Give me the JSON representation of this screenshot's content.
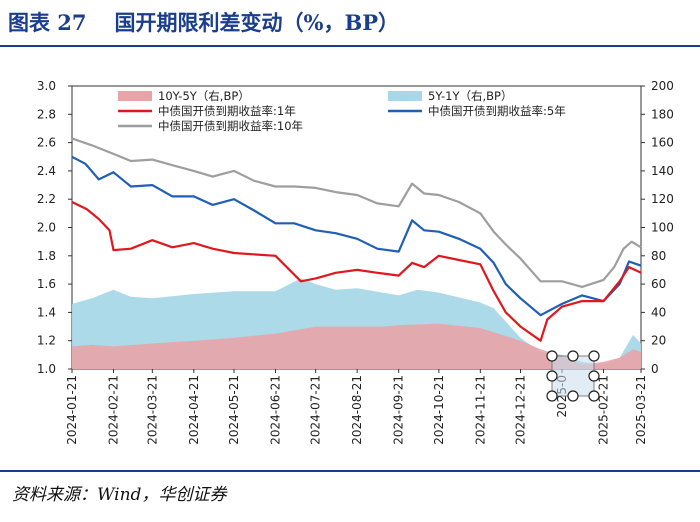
{
  "figure": {
    "number": "图表 27",
    "title": "国开期限利差变动（%，BP）",
    "source": "资料来源：Wind，华创证券"
  },
  "colors": {
    "accent": "#1a3e8c",
    "spread_10y_5y": "#e8a4a8",
    "spread_5y_1y": "#a8d8e8",
    "yield_1y": "#e0181e",
    "yield_5y": "#1f5fb5",
    "yield_10y": "#9e9e9e"
  },
  "chart_data": {
    "type": "line",
    "x_start": "2024-01-21",
    "x_end": "2025-03-21",
    "xticks": [
      "2024-01-21",
      "2024-02-21",
      "2024-03-21",
      "2024-04-21",
      "2024-05-21",
      "2024-06-21",
      "2024-07-21",
      "2024-08-21",
      "2024-09-21",
      "2024-10-21",
      "2024-11-21",
      "2024-12-21",
      "2025-01-21",
      "2025-02-21",
      "2025-03-21"
    ],
    "xtick_labels": [
      "2024-01-21",
      "2024-02-21",
      "2024-03-21",
      "2024-04-21",
      "2024-05-21",
      "2024-06-21",
      "2024-07-21",
      "2024-08-21",
      "2024-09-21",
      "2024-10-21",
      "2024-11-21",
      "2024-12-21",
      "2025-0",
      "2025-02-21",
      "2025-03-21"
    ],
    "left_axis": {
      "label": "%",
      "ylim": [
        1.0,
        3.0
      ],
      "ticks": [
        "1.0",
        "1.2",
        "1.4",
        "1.6",
        "1.8",
        "2.0",
        "2.2",
        "2.4",
        "2.6",
        "2.8",
        "3.0"
      ]
    },
    "right_axis": {
      "label": "BP",
      "ylim": [
        0,
        200
      ],
      "ticks": [
        "0",
        "20",
        "40",
        "60",
        "80",
        "100",
        "120",
        "140",
        "160",
        "180",
        "200"
      ]
    },
    "series": [
      {
        "name": "10Y-5Y（右,BP）",
        "kind": "area",
        "axis": "right",
        "points": [
          [
            "2024-01-21",
            16
          ],
          [
            "2024-02-05",
            17
          ],
          [
            "2024-02-21",
            16
          ],
          [
            "2024-03-21",
            18
          ],
          [
            "2024-04-21",
            20
          ],
          [
            "2024-05-21",
            22
          ],
          [
            "2024-06-10",
            24
          ],
          [
            "2024-06-21",
            25
          ],
          [
            "2024-07-21",
            30
          ],
          [
            "2024-08-21",
            30
          ],
          [
            "2024-09-10",
            30
          ],
          [
            "2024-09-21",
            31
          ],
          [
            "2024-10-21",
            32
          ],
          [
            "2024-11-21",
            29
          ],
          [
            "2024-12-01",
            26
          ],
          [
            "2024-12-21",
            20
          ],
          [
            "2025-01-05",
            14
          ],
          [
            "2025-01-21",
            9
          ],
          [
            "2025-02-05",
            3
          ],
          [
            "2025-02-21",
            5
          ],
          [
            "2025-03-05",
            8
          ],
          [
            "2025-03-15",
            14
          ],
          [
            "2025-03-21",
            12
          ]
        ]
      },
      {
        "name": "5Y-1Y（右,BP）",
        "kind": "area",
        "axis": "right",
        "points": [
          [
            "2024-01-21",
            46
          ],
          [
            "2024-02-05",
            50
          ],
          [
            "2024-02-21",
            56
          ],
          [
            "2024-03-05",
            51
          ],
          [
            "2024-03-21",
            50
          ],
          [
            "2024-04-21",
            53
          ],
          [
            "2024-05-21",
            55
          ],
          [
            "2024-06-21",
            55
          ],
          [
            "2024-07-10",
            64
          ],
          [
            "2024-07-21",
            60
          ],
          [
            "2024-08-05",
            56
          ],
          [
            "2024-08-21",
            57
          ],
          [
            "2024-09-21",
            52
          ],
          [
            "2024-10-05",
            56
          ],
          [
            "2024-10-21",
            54
          ],
          [
            "2024-11-21",
            47
          ],
          [
            "2024-12-01",
            43
          ],
          [
            "2024-12-21",
            22
          ],
          [
            "2025-01-05",
            12
          ],
          [
            "2025-01-21",
            10
          ],
          [
            "2025-02-05",
            5
          ],
          [
            "2025-02-21",
            3
          ],
          [
            "2025-03-05",
            8
          ],
          [
            "2025-03-15",
            24
          ],
          [
            "2025-03-21",
            18
          ]
        ]
      },
      {
        "name": "中债国开债到期收益率:1年",
        "kind": "line",
        "axis": "left",
        "points": [
          [
            "2024-01-21",
            2.18
          ],
          [
            "2024-02-01",
            2.13
          ],
          [
            "2024-02-10",
            2.06
          ],
          [
            "2024-02-18",
            1.98
          ],
          [
            "2024-02-21",
            1.84
          ],
          [
            "2024-03-05",
            1.85
          ],
          [
            "2024-03-21",
            1.91
          ],
          [
            "2024-04-05",
            1.86
          ],
          [
            "2024-04-21",
            1.89
          ],
          [
            "2024-05-05",
            1.85
          ],
          [
            "2024-05-21",
            1.82
          ],
          [
            "2024-06-21",
            1.8
          ],
          [
            "2024-07-10",
            1.62
          ],
          [
            "2024-07-21",
            1.64
          ],
          [
            "2024-08-05",
            1.68
          ],
          [
            "2024-08-21",
            1.7
          ],
          [
            "2024-09-05",
            1.68
          ],
          [
            "2024-09-21",
            1.66
          ],
          [
            "2024-10-01",
            1.75
          ],
          [
            "2024-10-10",
            1.72
          ],
          [
            "2024-10-21",
            1.8
          ],
          [
            "2024-11-05",
            1.77
          ],
          [
            "2024-11-21",
            1.74
          ],
          [
            "2024-12-01",
            1.55
          ],
          [
            "2024-12-10",
            1.4
          ],
          [
            "2024-12-21",
            1.3
          ],
          [
            "2025-01-05",
            1.2
          ],
          [
            "2025-01-10",
            1.35
          ],
          [
            "2025-01-21",
            1.44
          ],
          [
            "2025-02-05",
            1.48
          ],
          [
            "2025-02-21",
            1.48
          ],
          [
            "2025-03-05",
            1.62
          ],
          [
            "2025-03-12",
            1.72
          ],
          [
            "2025-03-21",
            1.68
          ]
        ]
      },
      {
        "name": "中债国开债到期收益率:5年",
        "kind": "line",
        "axis": "left",
        "points": [
          [
            "2024-01-21",
            2.5
          ],
          [
            "2024-01-31",
            2.45
          ],
          [
            "2024-02-10",
            2.34
          ],
          [
            "2024-02-21",
            2.39
          ],
          [
            "2024-03-05",
            2.29
          ],
          [
            "2024-03-21",
            2.3
          ],
          [
            "2024-04-05",
            2.22
          ],
          [
            "2024-04-21",
            2.22
          ],
          [
            "2024-05-05",
            2.16
          ],
          [
            "2024-05-21",
            2.2
          ],
          [
            "2024-06-05",
            2.12
          ],
          [
            "2024-06-21",
            2.03
          ],
          [
            "2024-07-05",
            2.03
          ],
          [
            "2024-07-21",
            1.98
          ],
          [
            "2024-08-05",
            1.96
          ],
          [
            "2024-08-21",
            1.92
          ],
          [
            "2024-09-05",
            1.85
          ],
          [
            "2024-09-21",
            1.83
          ],
          [
            "2024-10-01",
            2.05
          ],
          [
            "2024-10-10",
            1.98
          ],
          [
            "2024-10-21",
            1.97
          ],
          [
            "2024-11-05",
            1.92
          ],
          [
            "2024-11-21",
            1.85
          ],
          [
            "2024-12-01",
            1.75
          ],
          [
            "2024-12-10",
            1.6
          ],
          [
            "2024-12-21",
            1.5
          ],
          [
            "2025-01-05",
            1.38
          ],
          [
            "2025-01-21",
            1.46
          ],
          [
            "2025-02-05",
            1.52
          ],
          [
            "2025-02-21",
            1.48
          ],
          [
            "2025-03-05",
            1.6
          ],
          [
            "2025-03-12",
            1.76
          ],
          [
            "2025-03-21",
            1.73
          ]
        ]
      },
      {
        "name": "中债国开债到期收益率:10年",
        "kind": "line",
        "axis": "left",
        "points": [
          [
            "2024-01-21",
            2.63
          ],
          [
            "2024-02-05",
            2.58
          ],
          [
            "2024-02-21",
            2.52
          ],
          [
            "2024-03-05",
            2.47
          ],
          [
            "2024-03-21",
            2.48
          ],
          [
            "2024-04-05",
            2.44
          ],
          [
            "2024-04-21",
            2.4
          ],
          [
            "2024-05-05",
            2.36
          ],
          [
            "2024-05-21",
            2.4
          ],
          [
            "2024-06-05",
            2.33
          ],
          [
            "2024-06-21",
            2.29
          ],
          [
            "2024-07-05",
            2.29
          ],
          [
            "2024-07-21",
            2.28
          ],
          [
            "2024-08-05",
            2.25
          ],
          [
            "2024-08-21",
            2.23
          ],
          [
            "2024-09-05",
            2.17
          ],
          [
            "2024-09-21",
            2.15
          ],
          [
            "2024-10-01",
            2.31
          ],
          [
            "2024-10-10",
            2.24
          ],
          [
            "2024-10-21",
            2.23
          ],
          [
            "2024-11-05",
            2.18
          ],
          [
            "2024-11-21",
            2.1
          ],
          [
            "2024-12-01",
            1.97
          ],
          [
            "2024-12-10",
            1.88
          ],
          [
            "2024-12-21",
            1.78
          ],
          [
            "2025-01-05",
            1.62
          ],
          [
            "2025-01-21",
            1.62
          ],
          [
            "2025-02-05",
            1.58
          ],
          [
            "2025-02-21",
            1.63
          ],
          [
            "2025-03-01",
            1.72
          ],
          [
            "2025-03-08",
            1.85
          ],
          [
            "2025-03-14",
            1.9
          ],
          [
            "2025-03-21",
            1.86
          ]
        ]
      }
    ]
  }
}
